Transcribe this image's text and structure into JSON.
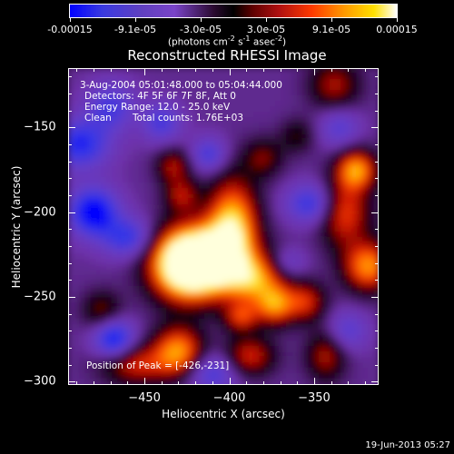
{
  "chart_data": {
    "type": "heatmap",
    "title": "Reconstructed RHESSI Image",
    "xlabel": "Heliocentric X (arcsec)",
    "ylabel": "Heliocentric Y (arcsec)",
    "xlim": [
      -495,
      -312
    ],
    "ylim": [
      -302,
      -115
    ],
    "xticks": [
      -450,
      -400,
      -350
    ],
    "yticks": [
      -150,
      -200,
      -250,
      -300
    ],
    "colorbar": {
      "range": [
        -0.00015,
        0.00015
      ],
      "tick_labels": [
        "-0.00015",
        "-9.1e-05",
        "-3.0e-05",
        "3.0e-05",
        "9.1e-05",
        "0.00015"
      ],
      "units_text": "(photons cm",
      "units_sup1": "-2",
      "units_mid": " s",
      "units_sup2": "-1",
      "units_end": " asec",
      "units_sup3": "-2",
      "units_close": ")"
    },
    "peak": [
      -426,
      -231
    ],
    "blobs": [
      {
        "x": -426,
        "y": -231,
        "sx": 14,
        "sy": 14,
        "v": 1.5
      },
      {
        "x": -410,
        "y": -228,
        "sx": 16,
        "sy": 14,
        "v": 1.1
      },
      {
        "x": -398,
        "y": -206,
        "sx": 10,
        "sy": 18,
        "v": 1.0
      },
      {
        "x": -385,
        "y": -240,
        "sx": 12,
        "sy": 10,
        "v": 0.8
      },
      {
        "x": -373,
        "y": -255,
        "sx": 8,
        "sy": 8,
        "v": 0.8
      },
      {
        "x": -355,
        "y": -253,
        "sx": 8,
        "sy": 8,
        "v": 0.6
      },
      {
        "x": -393,
        "y": -262,
        "sx": 7,
        "sy": 6,
        "v": 0.6
      },
      {
        "x": -388,
        "y": -285,
        "sx": 10,
        "sy": 8,
        "v": 0.6
      },
      {
        "x": -455,
        "y": -290,
        "sx": 14,
        "sy": 8,
        "v": 0.6
      },
      {
        "x": -430,
        "y": -282,
        "sx": 10,
        "sy": 10,
        "v": 0.9
      },
      {
        "x": -475,
        "y": -258,
        "sx": 8,
        "sy": 8,
        "v": 0.4
      },
      {
        "x": -428,
        "y": -190,
        "sx": 7,
        "sy": 7,
        "v": 0.5
      },
      {
        "x": -433,
        "y": -173,
        "sx": 7,
        "sy": 7,
        "v": 0.5
      },
      {
        "x": -338,
        "y": -125,
        "sx": 10,
        "sy": 10,
        "v": 0.5
      },
      {
        "x": -325,
        "y": -175,
        "sx": 8,
        "sy": 8,
        "v": 0.9
      },
      {
        "x": -332,
        "y": -200,
        "sx": 10,
        "sy": 14,
        "v": 0.7
      },
      {
        "x": -318,
        "y": -232,
        "sx": 10,
        "sy": 10,
        "v": 0.9
      },
      {
        "x": -343,
        "y": -285,
        "sx": 8,
        "sy": 10,
        "v": 0.5
      },
      {
        "x": -380,
        "y": -168,
        "sx": 8,
        "sy": 8,
        "v": 0.4
      },
      {
        "x": -360,
        "y": -155,
        "sx": 7,
        "sy": 7,
        "v": 0.3
      },
      {
        "x": -470,
        "y": -138,
        "sx": 10,
        "sy": 10,
        "v": -0.5
      },
      {
        "x": -488,
        "y": -160,
        "sx": 12,
        "sy": 10,
        "v": -0.7
      },
      {
        "x": -480,
        "y": -200,
        "sx": 10,
        "sy": 10,
        "v": -0.9
      },
      {
        "x": -460,
        "y": -215,
        "sx": 10,
        "sy": 8,
        "v": -0.6
      },
      {
        "x": -440,
        "y": -147,
        "sx": 8,
        "sy": 8,
        "v": -0.5
      },
      {
        "x": -412,
        "y": -166,
        "sx": 7,
        "sy": 7,
        "v": -0.5
      },
      {
        "x": -365,
        "y": -230,
        "sx": 7,
        "sy": 6,
        "v": -0.3
      },
      {
        "x": -352,
        "y": -195,
        "sx": 10,
        "sy": 8,
        "v": -0.6
      },
      {
        "x": -335,
        "y": -150,
        "sx": 8,
        "sy": 8,
        "v": -0.4
      },
      {
        "x": -468,
        "y": -275,
        "sx": 8,
        "sy": 8,
        "v": -0.8
      },
      {
        "x": -410,
        "y": -295,
        "sx": 10,
        "sy": 8,
        "v": -0.5
      },
      {
        "x": -330,
        "y": -270,
        "sx": 8,
        "sy": 8,
        "v": -0.4
      }
    ]
  },
  "info": {
    "line1": "3-Aug-2004 05:01:48.000 to 05:04:44.000",
    "line2": "Detectors: 4F 5F 6F 7F 8F, Att 0",
    "line3": "Energy Range: 12.0 - 25.0 keV",
    "line4a": "Clean",
    "line4b": "Total counts: 1.76E+03",
    "peak_label": "Position of Peak = [-426,-231]"
  },
  "datestamp": "19-Jun-2013 05:27"
}
